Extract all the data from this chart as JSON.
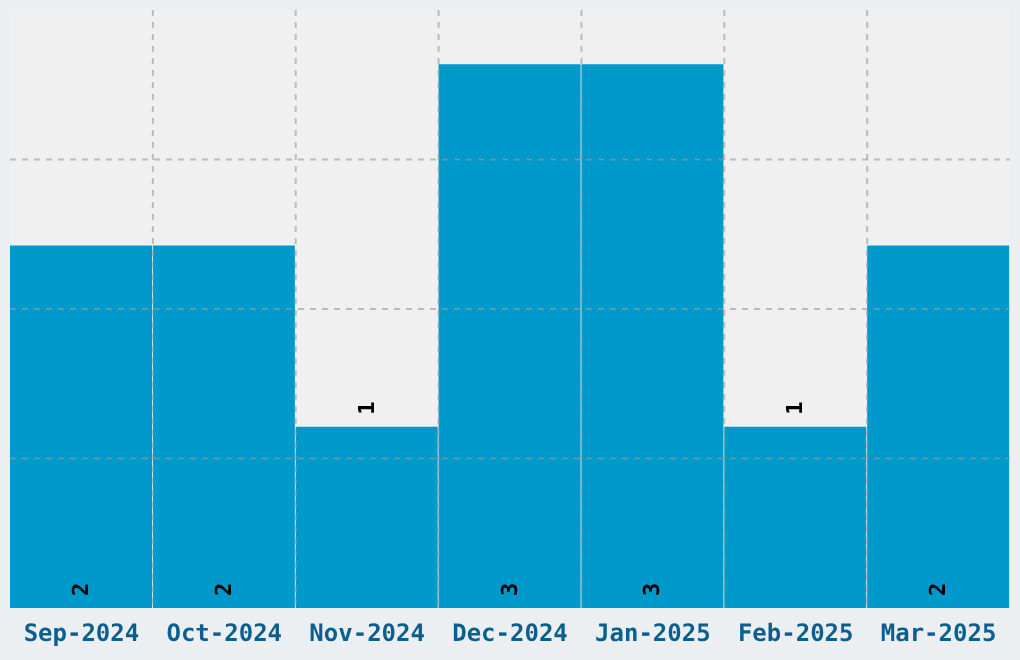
{
  "chart_data": {
    "type": "bar",
    "categories": [
      "Sep-2024",
      "Oct-2024",
      "Nov-2024",
      "Dec-2024",
      "Jan-2025",
      "Feb-2025",
      "Mar-2025"
    ],
    "values": [
      2,
      2,
      1,
      3,
      3,
      1,
      2
    ],
    "color": "#0099cc",
    "ylim": [
      0,
      3.3
    ],
    "grid": true,
    "data_labels": true,
    "tick_labels": "x"
  }
}
